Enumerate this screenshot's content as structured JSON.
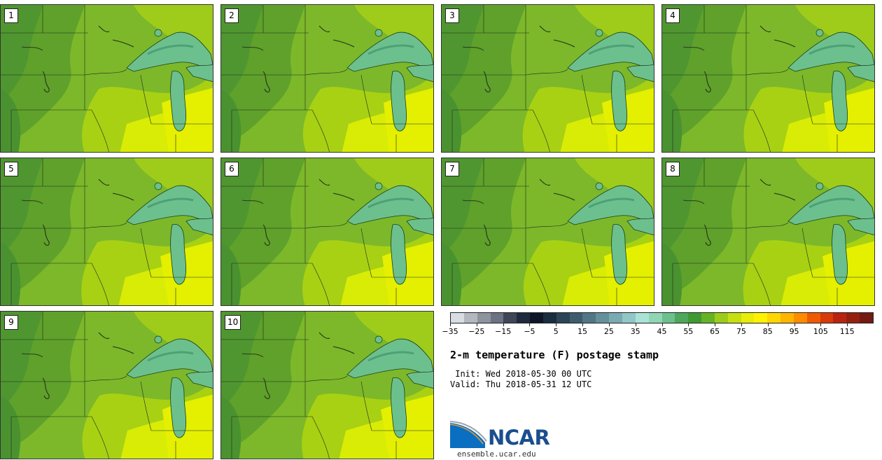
{
  "panels": [
    {
      "label": "1"
    },
    {
      "label": "2"
    },
    {
      "label": "3"
    },
    {
      "label": "4"
    },
    {
      "label": "5"
    },
    {
      "label": "6"
    },
    {
      "label": "7"
    },
    {
      "label": "8"
    },
    {
      "label": "9"
    },
    {
      "label": "10"
    }
  ],
  "colorbar": {
    "colors": [
      "#d8dde3",
      "#b3b8c0",
      "#8e949e",
      "#6b7282",
      "#3f4658",
      "#1f2a3f",
      "#0d1628",
      "#1a2d40",
      "#2b4457",
      "#3e5c6e",
      "#517685",
      "#64909c",
      "#7aaab2",
      "#93c6c6",
      "#a8e3d6",
      "#8fd6b4",
      "#6cc08e",
      "#4ea75a",
      "#3d9a32",
      "#66b227",
      "#9ccc1a",
      "#c6df10",
      "#e8ec08",
      "#fff200",
      "#ffd600",
      "#ffb400",
      "#ff8c00",
      "#f05a00",
      "#d83a0a",
      "#b82410",
      "#962010",
      "#741a10"
    ],
    "ticks": [
      "−35",
      "−25",
      "−15",
      "−5",
      "5",
      "15",
      "25",
      "35",
      "45",
      "55",
      "65",
      "75",
      "85",
      "95",
      "105",
      "115"
    ]
  },
  "title": "2-m temperature (F) postage stamp",
  "init": " Init: Wed 2018-05-30 00 UTC",
  "valid": "Valid: Thu 2018-05-31 12 UTC",
  "logo": {
    "text": "NCAR",
    "site": "ensemble.ucar.edu"
  }
}
